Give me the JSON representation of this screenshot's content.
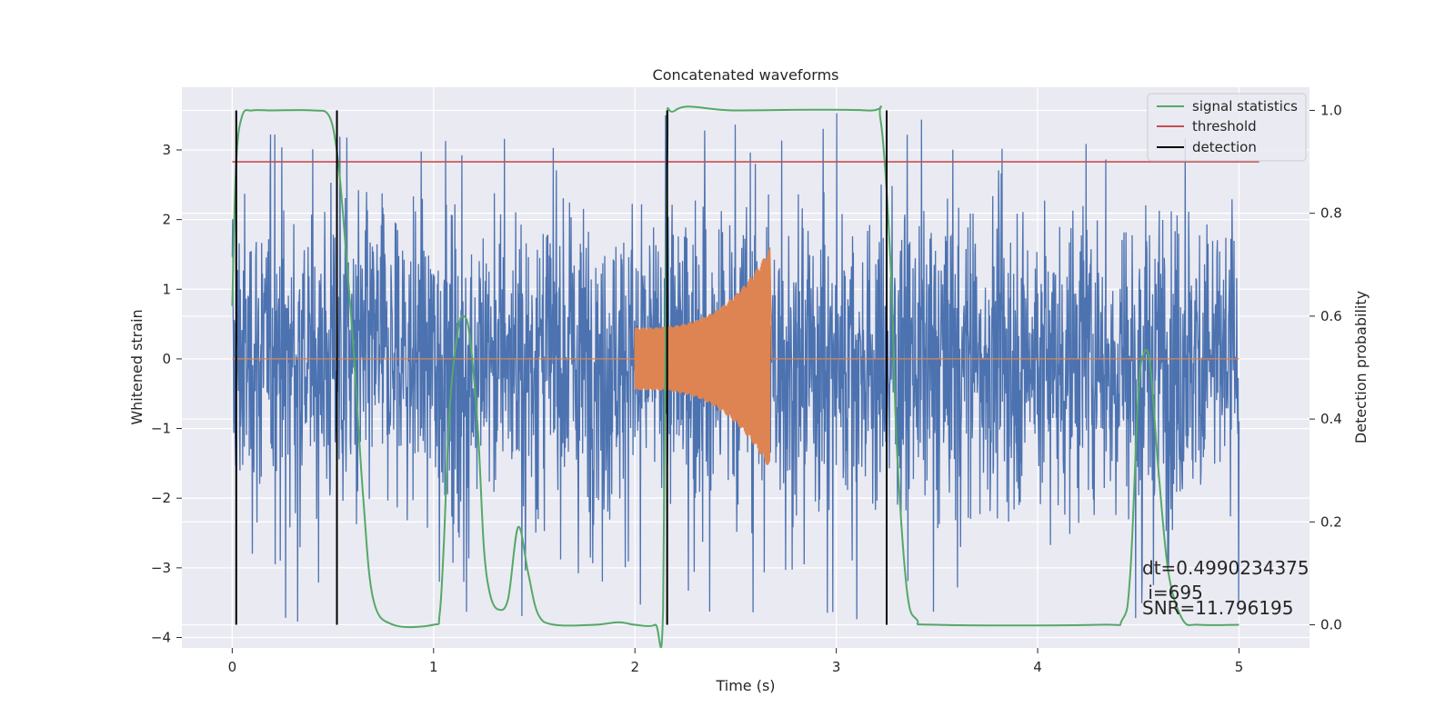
{
  "chart_data": {
    "type": "line",
    "title": "Concatenated waveforms",
    "xlabel": "Time (s)",
    "ylabel": "Whitened strain",
    "ylabel_right": "Detection probability",
    "xlim": [
      -0.25,
      5.35
    ],
    "ylim": [
      -4.15,
      3.9
    ],
    "ylim_right": [
      -0.045,
      1.045
    ],
    "x_ticks": [
      0,
      1,
      2,
      3,
      4,
      5
    ],
    "y_ticks": [
      -4,
      -3,
      -2,
      -1,
      0,
      1,
      2,
      3
    ],
    "y_ticks_right": [
      0.0,
      0.2,
      0.4,
      0.6,
      0.8,
      1.0
    ],
    "grid": true,
    "legend_position": "top-right",
    "legend": [
      "signal statistics",
      "threshold",
      "detection"
    ],
    "colors": {
      "strain": "#4c72b0",
      "template": "#dd8452",
      "statistics": "#55a868",
      "threshold": "#c44e52",
      "detection": "#000000",
      "axes_bg": "#eaeaf2",
      "grid": "#ffffff"
    },
    "series": [
      {
        "name": "strain (noise)",
        "axis": "left",
        "x_range": [
          0,
          5
        ],
        "envelope": {
          "typical_abs": 2.0,
          "max": 3.6,
          "min": -3.8
        }
      },
      {
        "name": "template",
        "axis": "left",
        "x_range": [
          2.0,
          2.67
        ],
        "amplitude_start": 0.45,
        "amplitude_end": 1.6
      },
      {
        "name": "signal statistics",
        "axis": "right",
        "x": [
          0.0,
          0.02,
          0.05,
          0.1,
          0.2,
          0.4,
          0.48,
          0.52,
          0.55,
          0.6,
          0.65,
          0.7,
          0.8,
          1.0,
          1.03,
          1.05,
          1.08,
          1.12,
          1.15,
          1.18,
          1.22,
          1.25,
          1.28,
          1.32,
          1.37,
          1.42,
          1.47,
          1.52,
          1.6,
          1.8,
          1.92,
          2.0,
          2.1,
          2.14,
          2.16,
          2.2,
          2.5,
          3.15,
          3.22,
          3.27,
          3.3,
          3.35,
          3.4,
          3.5,
          4.3,
          4.42,
          4.46,
          4.5,
          4.53,
          4.56,
          4.6,
          4.65,
          4.72,
          4.8,
          5.0
        ],
        "y": [
          0.62,
          0.9,
          0.99,
          1.0,
          1.0,
          1.0,
          0.99,
          0.92,
          0.8,
          0.55,
          0.25,
          0.05,
          0.0,
          0.0,
          0.02,
          0.15,
          0.42,
          0.57,
          0.6,
          0.56,
          0.38,
          0.15,
          0.06,
          0.03,
          0.05,
          0.19,
          0.1,
          0.02,
          0.0,
          0.0,
          0.005,
          0.0,
          0.0,
          0.03,
          0.9,
          1.0,
          1.0,
          1.0,
          0.98,
          0.7,
          0.35,
          0.07,
          0.01,
          0.0,
          0.0,
          0.01,
          0.1,
          0.45,
          0.53,
          0.5,
          0.3,
          0.1,
          0.01,
          0.0,
          0.0
        ]
      },
      {
        "name": "threshold",
        "axis": "right",
        "x": [
          0.0,
          5.1
        ],
        "y": [
          0.9,
          0.9
        ]
      },
      {
        "name": "detection",
        "axis": "right",
        "type": "vlines",
        "x": [
          0.02,
          0.52,
          2.16,
          3.25
        ],
        "ymin": 0.0,
        "ymax": 1.0
      }
    ],
    "annotations": [
      "dt=0.4990234375",
      " i=695",
      "SNR=11.796195"
    ]
  }
}
